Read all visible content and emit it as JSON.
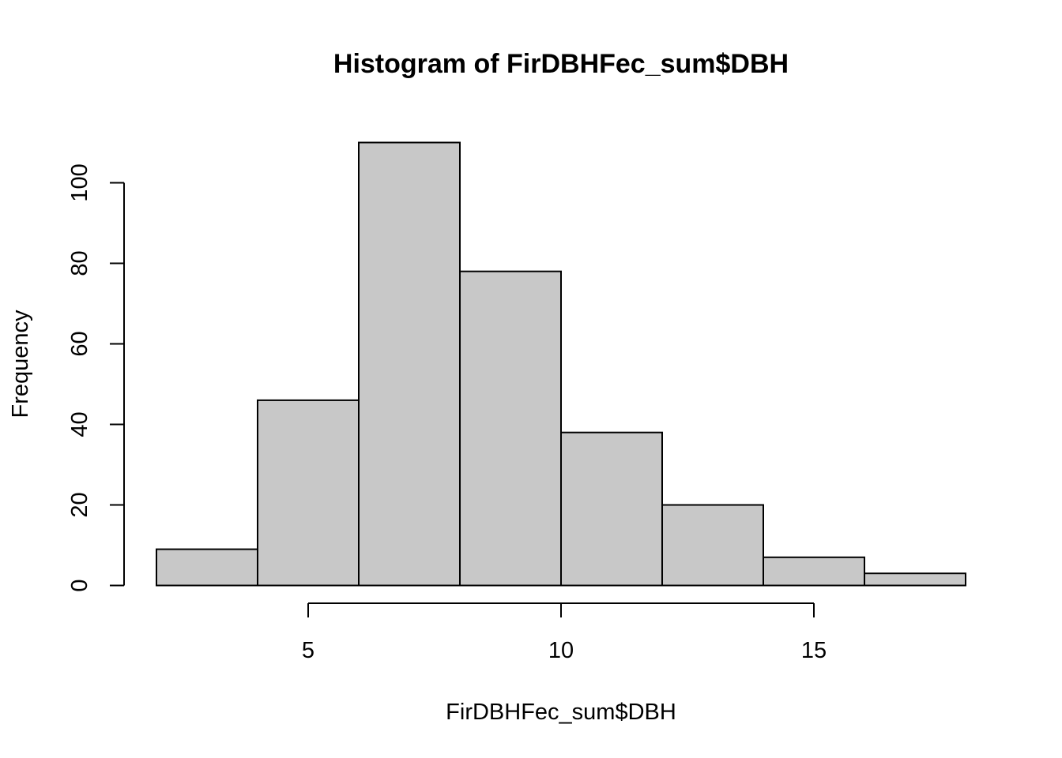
{
  "chart_data": {
    "type": "bar",
    "title": "Histogram of FirDBHFec_sum$DBH",
    "xlabel": "FirDBHFec_sum$DBH",
    "ylabel": "Frequency",
    "bins": [
      {
        "x0": 2,
        "x1": 4,
        "count": 9
      },
      {
        "x0": 4,
        "x1": 6,
        "count": 46
      },
      {
        "x0": 6,
        "x1": 8,
        "count": 110
      },
      {
        "x0": 8,
        "x1": 10,
        "count": 78
      },
      {
        "x0": 10,
        "x1": 12,
        "count": 38
      },
      {
        "x0": 12,
        "x1": 14,
        "count": 20
      },
      {
        "x0": 14,
        "x1": 16,
        "count": 7
      },
      {
        "x0": 16,
        "x1": 18,
        "count": 3
      }
    ],
    "xticks": [
      5,
      10,
      15
    ],
    "yticks": [
      0,
      20,
      40,
      60,
      80,
      100
    ],
    "xlim": [
      2,
      18
    ],
    "ylim": [
      0,
      110
    ],
    "grid": false,
    "legend": "none",
    "colors": {
      "bar_fill": "#c8c8c8",
      "bar_stroke": "#000000"
    }
  }
}
